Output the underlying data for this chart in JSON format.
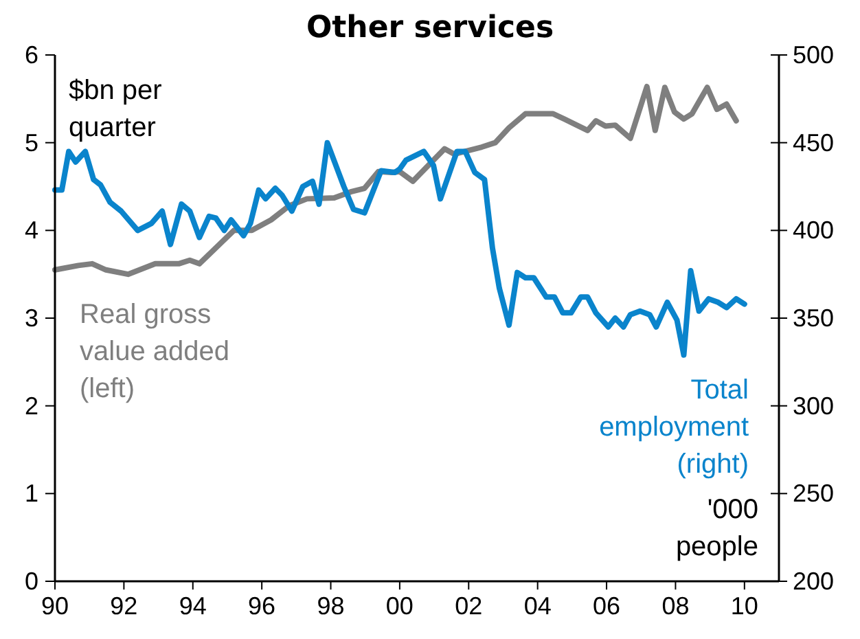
{
  "chart_data": {
    "type": "line",
    "title": "Other services",
    "ylabel": "$bn per quarter",
    "y2label": "'000 people",
    "xlim": [
      1990,
      2011
    ],
    "xticks": [
      {
        "value": 1990,
        "label": "90"
      },
      {
        "value": 1992,
        "label": "92"
      },
      {
        "value": 1994,
        "label": "94"
      },
      {
        "value": 1996,
        "label": "96"
      },
      {
        "value": 1998,
        "label": "98"
      },
      {
        "value": 2000,
        "label": "00"
      },
      {
        "value": 2002,
        "label": "02"
      },
      {
        "value": 2004,
        "label": "04"
      },
      {
        "value": 2006,
        "label": "06"
      },
      {
        "value": 2008,
        "label": "08"
      },
      {
        "value": 2010,
        "label": "10"
      }
    ],
    "ylim": [
      0,
      6
    ],
    "yticks": [
      0,
      1,
      2,
      3,
      4,
      5,
      6
    ],
    "y2lim": [
      200,
      500
    ],
    "y2ticks": [
      200,
      250,
      300,
      350,
      400,
      450,
      500
    ],
    "grid": false,
    "marker": "none",
    "line_style": "solid",
    "series": [
      {
        "name": "Real gross value added (left)",
        "color": "#7f7f7f",
        "x": [
          1990,
          1990.68,
          1991.08,
          1991.48,
          1992.12,
          1992.91,
          1993.59,
          1993.91,
          1994.19,
          1995.19,
          1995.71,
          1996.27,
          1996.79,
          1997.31,
          1998.1,
          1998.58,
          1998.98,
          1999.38,
          1999.78,
          2000,
          2000.38,
          2001.3,
          2001.58,
          2002.38,
          2002.77,
          2003.17,
          2003.65,
          2004.45,
          2004.77,
          2005.45,
          2005.69,
          2005.97,
          2006.25,
          2006.69,
          2007.17,
          2007.41,
          2007.69,
          2007.97,
          2008.24,
          2008.48,
          2008.92,
          2009.2,
          2009.48,
          2009.76
        ],
        "values": [
          3.55,
          3.6,
          3.62,
          3.55,
          3.5,
          3.62,
          3.62,
          3.66,
          3.62,
          4.0,
          4.0,
          4.12,
          4.28,
          4.36,
          4.37,
          4.44,
          4.48,
          4.67,
          4.66,
          4.67,
          4.56,
          4.93,
          4.87,
          4.95,
          5.0,
          5.17,
          5.33,
          5.33,
          5.27,
          5.14,
          5.25,
          5.19,
          5.2,
          5.05,
          5.64,
          5.14,
          5.63,
          5.35,
          5.27,
          5.33,
          5.63,
          5.38,
          5.44,
          5.25
        ]
      },
      {
        "name": "Total employment (right)",
        "color": "#0a84cc",
        "axis": "y2",
        "x": [
          1990,
          1990.2,
          1990.4,
          1990.6,
          1990.88,
          1991.12,
          1991.32,
          1991.6,
          1991.92,
          1992.4,
          1992.8,
          1993.11,
          1993.35,
          1993.67,
          1993.91,
          1994.19,
          1994.47,
          1994.67,
          1994.91,
          1995.11,
          1995.47,
          1995.67,
          1995.91,
          1996.11,
          1996.39,
          1996.59,
          1996.87,
          1997.19,
          1997.47,
          1997.66,
          1997.9,
          1998.38,
          1998.66,
          1998.98,
          1999.46,
          1999.86,
          2000,
          2000.18,
          2000.7,
          2000.98,
          2001.18,
          2001.66,
          2001.9,
          2002.18,
          2002.46,
          2002.69,
          2002.89,
          2003.17,
          2003.41,
          2003.65,
          2003.89,
          2004.25,
          2004.49,
          2004.73,
          2004.97,
          2005.25,
          2005.45,
          2005.69,
          2006.05,
          2006.25,
          2006.49,
          2006.69,
          2006.97,
          2007.25,
          2007.44,
          2007.76,
          2008.04,
          2008.24,
          2008.44,
          2008.68,
          2008.96,
          2009.24,
          2009.48,
          2009.76,
          2010
        ],
        "values": [
          423,
          423,
          445,
          439,
          445,
          429,
          426,
          416,
          411,
          400,
          404,
          411,
          392,
          415,
          411,
          396,
          408,
          407,
          400,
          406,
          397,
          404,
          423,
          418,
          424,
          420,
          411,
          425,
          428,
          415,
          450,
          425,
          412,
          410,
          434,
          433,
          435,
          440,
          445,
          437,
          418,
          445,
          445,
          433,
          429,
          390,
          367,
          346,
          376,
          373,
          373,
          362,
          362,
          353,
          353,
          362,
          362,
          353,
          345,
          350,
          345,
          352,
          354,
          352,
          345,
          359,
          349,
          329,
          377,
          354,
          361,
          359,
          356,
          361,
          358
        ]
      }
    ]
  }
}
